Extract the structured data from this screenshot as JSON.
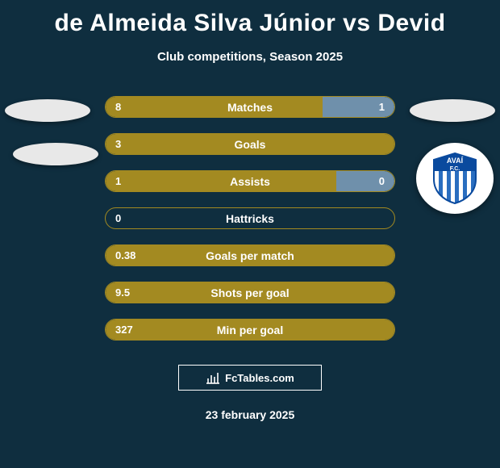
{
  "title": "de Almeida Silva Júnior vs Devid",
  "subtitle": "Club competitions, Season 2025",
  "footer_site": "FcTables.com",
  "footer_date": "23 february 2025",
  "colors": {
    "background": "#0f2e3f",
    "primary": "#a38a21",
    "secondary": "#6f90ab",
    "row_border": "#a38a21",
    "text": "#ffffff"
  },
  "rows": [
    {
      "label": "Matches",
      "left": "8",
      "right": "1",
      "left_pct": 75,
      "right_pct": 25
    },
    {
      "label": "Goals",
      "left": "3",
      "right": "",
      "left_pct": 100,
      "right_pct": 0
    },
    {
      "label": "Assists",
      "left": "1",
      "right": "0",
      "left_pct": 80,
      "right_pct": 20
    },
    {
      "label": "Hattricks",
      "left": "0",
      "right": "",
      "left_pct": 0,
      "right_pct": 0
    },
    {
      "label": "Goals per match",
      "left": "0.38",
      "right": "",
      "left_pct": 100,
      "right_pct": 0
    },
    {
      "label": "Shots per goal",
      "left": "9.5",
      "right": "",
      "left_pct": 100,
      "right_pct": 0
    },
    {
      "label": "Min per goal",
      "left": "327",
      "right": "",
      "left_pct": 100,
      "right_pct": 0
    }
  ],
  "badge": {
    "text_top": "AVAÍ",
    "text_bottom": "F.C.",
    "shield_top_color": "#0a4a9e",
    "shield_stripe_light": "#ffffff",
    "shield_stripe_dark": "#2a6ec0"
  }
}
